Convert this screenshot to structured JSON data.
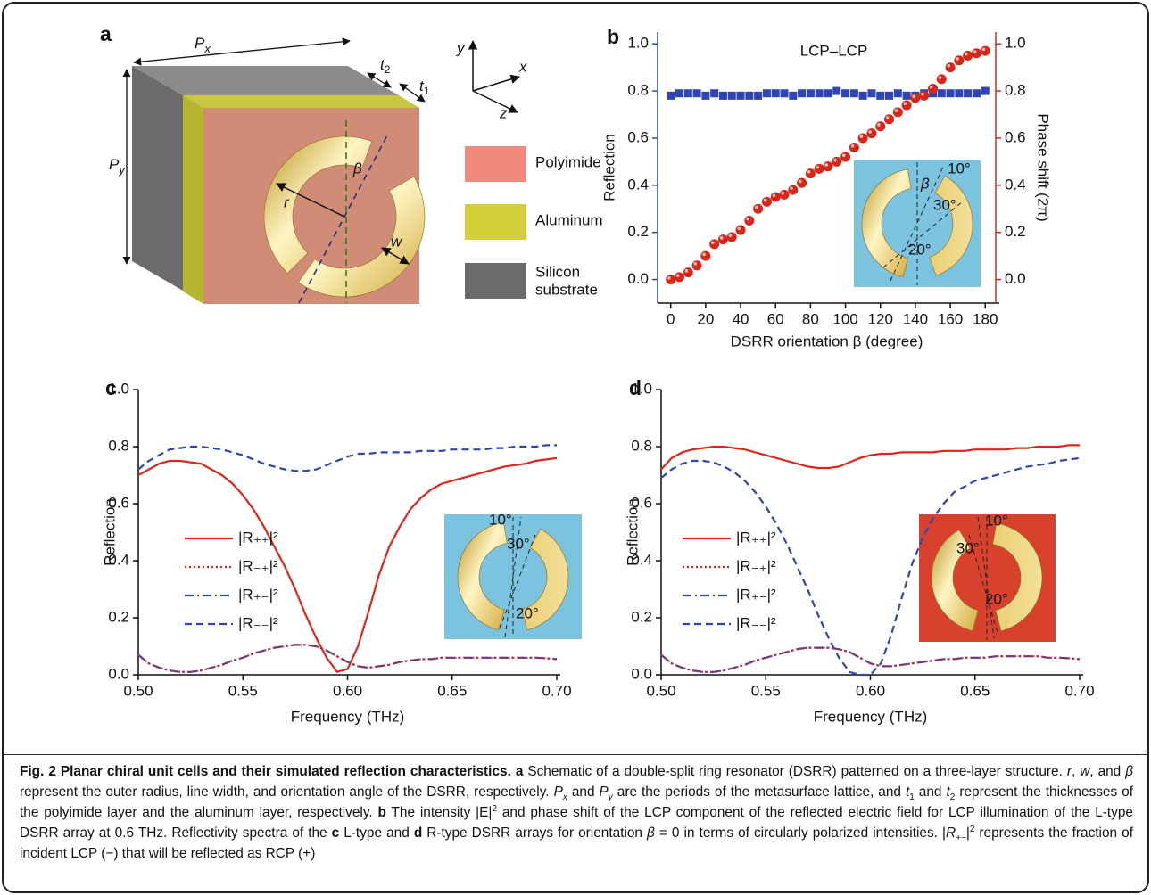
{
  "schematic": {
    "panel": "a",
    "Px": [
      "P",
      "x"
    ],
    "Py": [
      "P",
      "y"
    ],
    "t1": [
      "t",
      "1"
    ],
    "t2": [
      "t",
      "2"
    ],
    "axes": [
      "y",
      "x",
      "z"
    ],
    "ring": [
      "r",
      "w",
      "β"
    ],
    "materials": [
      "Polyimide",
      "Aluminum",
      [
        "Silicon",
        "substrate"
      ]
    ]
  },
  "chart_data": [
    {
      "panel": "b",
      "type": "scatter",
      "annotation": "LCP–LCP",
      "xlabel": "DSRR orientation β (degree)",
      "ylabel": "Reflection",
      "y2label": "Phase shift (2π)",
      "x": [
        0,
        5,
        10,
        15,
        20,
        25,
        30,
        35,
        40,
        45,
        50,
        55,
        60,
        65,
        70,
        75,
        80,
        85,
        90,
        95,
        100,
        105,
        110,
        115,
        120,
        125,
        130,
        135,
        140,
        145,
        150,
        155,
        160,
        165,
        170,
        175,
        180
      ],
      "series": [
        {
          "marker": "square",
          "color": "#2d45b8",
          "values": [
            0.78,
            0.79,
            0.79,
            0.79,
            0.78,
            0.79,
            0.78,
            0.78,
            0.78,
            0.78,
            0.78,
            0.79,
            0.79,
            0.79,
            0.78,
            0.79,
            0.79,
            0.79,
            0.79,
            0.8,
            0.79,
            0.79,
            0.78,
            0.79,
            0.78,
            0.78,
            0.79,
            0.78,
            0.78,
            0.79,
            0.79,
            0.79,
            0.79,
            0.79,
            0.79,
            0.79,
            0.8
          ]
        },
        {
          "marker": "sphere",
          "color": "#d8261b",
          "axis": "y2",
          "values": [
            0.0,
            0.01,
            0.03,
            0.06,
            0.1,
            0.15,
            0.17,
            0.18,
            0.21,
            0.25,
            0.3,
            0.33,
            0.35,
            0.36,
            0.38,
            0.41,
            0.45,
            0.47,
            0.48,
            0.5,
            0.52,
            0.56,
            0.6,
            0.62,
            0.65,
            0.68,
            0.71,
            0.74,
            0.77,
            0.78,
            0.81,
            0.85,
            0.9,
            0.93,
            0.95,
            0.96,
            0.97
          ]
        }
      ],
      "xlim": [
        -7.5,
        186
      ],
      "xticks": [
        0,
        20,
        40,
        60,
        80,
        100,
        120,
        140,
        160,
        180
      ],
      "ylim": [
        -0.1,
        1.05
      ],
      "yticks": [
        {
          "value": 0,
          "label": "0.0"
        },
        {
          "value": 0.2,
          "label": "0.2"
        },
        {
          "value": 0.4,
          "label": "0.4"
        },
        {
          "value": 0.6,
          "label": "0.6"
        },
        {
          "value": 0.8,
          "label": "0.8"
        },
        {
          "value": 1,
          "label": "1.0"
        }
      ],
      "y2lim": [
        -0.1,
        1.05
      ],
      "y2ticks": [
        {
          "value": 0,
          "label": "0.0"
        },
        {
          "value": 0.2,
          "label": "0.2"
        },
        {
          "value": 0.4,
          "label": "0.4"
        },
        {
          "value": 0.6,
          "label": "0.6"
        },
        {
          "value": 0.8,
          "label": "0.8"
        },
        {
          "value": 1,
          "label": "1.0"
        }
      ],
      "inset_labels": [
        "10°",
        "β",
        "30°",
        "20°"
      ]
    },
    {
      "panel": "c",
      "type": "line",
      "xlabel": "Frequency (THz)",
      "ylabel": "Reflection",
      "legend": "left",
      "x": [
        0.5,
        0.505,
        0.51,
        0.515,
        0.52,
        0.525,
        0.53,
        0.535,
        0.54,
        0.545,
        0.55,
        0.555,
        0.56,
        0.565,
        0.57,
        0.575,
        0.58,
        0.585,
        0.59,
        0.595,
        0.6,
        0.605,
        0.61,
        0.615,
        0.62,
        0.625,
        0.63,
        0.635,
        0.64,
        0.645,
        0.65,
        0.655,
        0.66,
        0.665,
        0.67,
        0.675,
        0.68,
        0.685,
        0.69,
        0.695,
        0.7
      ],
      "series": [
        {
          "name": "|R₊₊|²",
          "color": "#e0251b",
          "dash": "solid",
          "values": [
            0.7,
            0.72,
            0.74,
            0.75,
            0.75,
            0.745,
            0.74,
            0.72,
            0.7,
            0.67,
            0.63,
            0.58,
            0.52,
            0.45,
            0.38,
            0.3,
            0.21,
            0.13,
            0.06,
            0.01,
            0.02,
            0.1,
            0.22,
            0.35,
            0.45,
            0.52,
            0.58,
            0.62,
            0.65,
            0.67,
            0.68,
            0.69,
            0.7,
            0.71,
            0.72,
            0.73,
            0.735,
            0.74,
            0.75,
            0.755,
            0.76
          ]
        },
        {
          "name": "|R₋₊|²",
          "color": "#e0251b",
          "dash": "dotted",
          "values": [
            0.07,
            0.04,
            0.025,
            0.015,
            0.01,
            0.01,
            0.015,
            0.025,
            0.035,
            0.05,
            0.06,
            0.075,
            0.085,
            0.095,
            0.1,
            0.105,
            0.105,
            0.1,
            0.085,
            0.065,
            0.045,
            0.03,
            0.025,
            0.03,
            0.035,
            0.045,
            0.05,
            0.055,
            0.055,
            0.06,
            0.06,
            0.06,
            0.06,
            0.06,
            0.06,
            0.06,
            0.06,
            0.06,
            0.06,
            0.058,
            0.055
          ]
        },
        {
          "name": "|R₊₋|²",
          "color": "#2d45b8",
          "dash": "dashdot",
          "values": [
            0.07,
            0.04,
            0.025,
            0.015,
            0.01,
            0.01,
            0.015,
            0.025,
            0.035,
            0.05,
            0.06,
            0.075,
            0.085,
            0.095,
            0.1,
            0.105,
            0.105,
            0.1,
            0.085,
            0.065,
            0.045,
            0.03,
            0.025,
            0.03,
            0.035,
            0.045,
            0.05,
            0.055,
            0.055,
            0.06,
            0.06,
            0.06,
            0.06,
            0.06,
            0.06,
            0.06,
            0.06,
            0.06,
            0.06,
            0.058,
            0.055
          ]
        },
        {
          "name": "|R₋₋|²",
          "color": "#2d45b8",
          "dash": "dashed",
          "values": [
            0.72,
            0.75,
            0.77,
            0.79,
            0.795,
            0.8,
            0.8,
            0.795,
            0.79,
            0.78,
            0.77,
            0.755,
            0.74,
            0.73,
            0.72,
            0.715,
            0.715,
            0.72,
            0.735,
            0.75,
            0.765,
            0.775,
            0.775,
            0.78,
            0.78,
            0.78,
            0.78,
            0.785,
            0.785,
            0.785,
            0.79,
            0.79,
            0.79,
            0.79,
            0.795,
            0.795,
            0.8,
            0.8,
            0.8,
            0.805,
            0.805
          ]
        }
      ],
      "xlim": [
        0.5,
        0.7
      ],
      "xticks": [
        {
          "value": 0.5,
          "label": "0.50"
        },
        {
          "value": 0.55,
          "label": "0.55"
        },
        {
          "value": 0.6,
          "label": "0.60"
        },
        {
          "value": 0.65,
          "label": "0.65"
        },
        {
          "value": 0.7,
          "label": "0.70"
        }
      ],
      "ylim": [
        0,
        1
      ],
      "yticks": [
        {
          "value": 0,
          "label": "0.0"
        },
        {
          "value": 0.2,
          "label": "0.2"
        },
        {
          "value": 0.4,
          "label": "0.4"
        },
        {
          "value": 0.6,
          "label": "0.6"
        },
        {
          "value": 0.8,
          "label": "0.8"
        },
        {
          "value": 1,
          "label": "1.0"
        }
      ],
      "inset_labels": [
        "10°",
        "30°",
        "20°"
      ]
    },
    {
      "panel": "d",
      "type": "line",
      "xlabel": "Frequency (THz)",
      "ylabel": "Reflection",
      "legend": "left",
      "x": [
        0.5,
        0.505,
        0.51,
        0.515,
        0.52,
        0.525,
        0.53,
        0.535,
        0.54,
        0.545,
        0.55,
        0.555,
        0.56,
        0.565,
        0.57,
        0.575,
        0.58,
        0.585,
        0.59,
        0.595,
        0.6,
        0.605,
        0.61,
        0.615,
        0.62,
        0.625,
        0.63,
        0.635,
        0.64,
        0.645,
        0.65,
        0.655,
        0.66,
        0.665,
        0.67,
        0.675,
        0.68,
        0.685,
        0.69,
        0.695,
        0.7
      ],
      "series": [
        {
          "name": "|R₊₊|²",
          "color": "#e0251b",
          "dash": "solid",
          "values": [
            0.72,
            0.76,
            0.78,
            0.79,
            0.795,
            0.8,
            0.8,
            0.795,
            0.79,
            0.78,
            0.77,
            0.76,
            0.75,
            0.74,
            0.73,
            0.725,
            0.725,
            0.73,
            0.745,
            0.76,
            0.77,
            0.775,
            0.775,
            0.78,
            0.78,
            0.78,
            0.78,
            0.785,
            0.785,
            0.785,
            0.79,
            0.79,
            0.79,
            0.79,
            0.795,
            0.795,
            0.8,
            0.8,
            0.8,
            0.805,
            0.805
          ]
        },
        {
          "name": "|R₋₊|²",
          "color": "#e0251b",
          "dash": "dotted",
          "values": [
            0.07,
            0.04,
            0.025,
            0.015,
            0.01,
            0.01,
            0.015,
            0.025,
            0.035,
            0.05,
            0.06,
            0.07,
            0.08,
            0.09,
            0.095,
            0.095,
            0.095,
            0.09,
            0.08,
            0.06,
            0.04,
            0.03,
            0.03,
            0.035,
            0.04,
            0.045,
            0.05,
            0.055,
            0.055,
            0.06,
            0.06,
            0.06,
            0.065,
            0.065,
            0.065,
            0.065,
            0.065,
            0.06,
            0.06,
            0.058,
            0.055
          ]
        },
        {
          "name": "|R₊₋|²",
          "color": "#2d45b8",
          "dash": "dashdot",
          "values": [
            0.07,
            0.04,
            0.025,
            0.015,
            0.01,
            0.01,
            0.015,
            0.025,
            0.035,
            0.05,
            0.06,
            0.07,
            0.08,
            0.09,
            0.095,
            0.095,
            0.095,
            0.09,
            0.08,
            0.06,
            0.04,
            0.03,
            0.03,
            0.035,
            0.04,
            0.045,
            0.05,
            0.055,
            0.055,
            0.06,
            0.06,
            0.06,
            0.065,
            0.065,
            0.065,
            0.065,
            0.065,
            0.06,
            0.06,
            0.058,
            0.055
          ]
        },
        {
          "name": "|R₋₋|²",
          "color": "#2d45b8",
          "dash": "dashed",
          "values": [
            0.69,
            0.72,
            0.74,
            0.75,
            0.75,
            0.745,
            0.73,
            0.71,
            0.68,
            0.64,
            0.59,
            0.53,
            0.46,
            0.38,
            0.3,
            0.21,
            0.13,
            0.06,
            0.01,
            0,
            0,
            0.04,
            0.14,
            0.27,
            0.39,
            0.48,
            0.55,
            0.6,
            0.64,
            0.66,
            0.68,
            0.69,
            0.7,
            0.71,
            0.72,
            0.73,
            0.735,
            0.74,
            0.75,
            0.755,
            0.76
          ]
        }
      ],
      "xlim": [
        0.5,
        0.7
      ],
      "xticks": [
        {
          "value": 0.5,
          "label": "0.50"
        },
        {
          "value": 0.55,
          "label": "0.55"
        },
        {
          "value": 0.6,
          "label": "0.60"
        },
        {
          "value": 0.65,
          "label": "0.65"
        },
        {
          "value": 0.7,
          "label": "0.70"
        }
      ],
      "ylim": [
        0,
        1
      ],
      "yticks": [
        {
          "value": 0,
          "label": "0.0"
        },
        {
          "value": 0.2,
          "label": "0.2"
        },
        {
          "value": 0.4,
          "label": "0.4"
        },
        {
          "value": 0.6,
          "label": "0.6"
        },
        {
          "value": 0.8,
          "label": "0.8"
        },
        {
          "value": 1,
          "label": "1.0"
        }
      ],
      "inset_labels": [
        "10°",
        "30°",
        "20°"
      ]
    }
  ],
  "caption": [
    "Fig. 2 Planar chiral unit cells and their simulated reflection characteristics. ",
    "a",
    " Schematic of a double-split ring resonator (DSRR) patterned on a three-layer structure. ",
    "r",
    ", ",
    "w",
    ", and ",
    "β",
    " represent the outer radius, line width, and orientation angle of the DSRR, respectively. ",
    "P",
    "x",
    " and ",
    "P",
    "y",
    " are the periods of the metasurface lattice, and ",
    "t",
    "1",
    " and ",
    "t",
    "2",
    " represent the thicknesses of the polyimide layer and the aluminum layer, respectively. ",
    "b",
    " The intensity |E|",
    "2",
    " and phase shift of the LCP component of the reflected electric field for LCP illumination of the L-type DSRR array at 0.6 THz. Reflectivity spectra of the ",
    "c",
    " L-type and ",
    "d",
    " R-type DSRR arrays for orientation ",
    "β",
    " = 0 in terms of circularly polarized intensities. |",
    "R",
    "+−",
    "|",
    "2",
    " represents the fraction of incident LCP (−) that will be reflected as RCP (+)"
  ]
}
